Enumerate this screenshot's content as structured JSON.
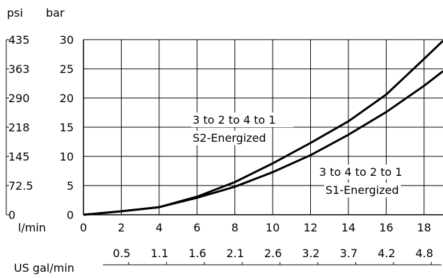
{
  "chart_data": {
    "type": "line",
    "y_units": [
      "psi",
      "bar"
    ],
    "x_unit": "l/min",
    "x2_unit": "US gal/min",
    "x_ticks": [
      0,
      2,
      4,
      6,
      8,
      10,
      12,
      14,
      16,
      18
    ],
    "x_range": [
      0,
      19
    ],
    "y_ticks_bar": [
      0,
      5,
      10,
      15,
      20,
      25,
      30
    ],
    "y_range": [
      0,
      30
    ],
    "y_ticks_psi": [
      "0",
      "72.5",
      "145",
      "218",
      "290",
      "363",
      "435"
    ],
    "x2_ticks": [
      "0.5",
      "1.1",
      "1.6",
      "2.1",
      "2.6",
      "3.2",
      "3.7",
      "4.2",
      "4.8"
    ],
    "grid": true,
    "series": [
      {
        "labels": [
          "3 to 2 to 4 to 1",
          "S2-Energized"
        ],
        "points": [
          [
            0,
            0
          ],
          [
            2,
            0.6
          ],
          [
            4,
            1.3
          ],
          [
            6,
            3.1
          ],
          [
            8,
            5.6
          ],
          [
            10,
            8.8
          ],
          [
            12,
            12.3
          ],
          [
            14,
            16.0
          ],
          [
            16,
            20.6
          ],
          [
            18,
            26.7
          ],
          [
            19,
            29.8
          ]
        ]
      },
      {
        "labels": [
          "3 to 4 to 2 to 1",
          "S1-Energized"
        ],
        "points": [
          [
            0,
            0
          ],
          [
            2,
            0.6
          ],
          [
            4,
            1.3
          ],
          [
            6,
            2.9
          ],
          [
            8,
            4.8
          ],
          [
            10,
            7.3
          ],
          [
            12,
            10.2
          ],
          [
            14,
            13.7
          ],
          [
            16,
            17.6
          ],
          [
            18,
            22.1
          ],
          [
            19,
            24.6
          ]
        ]
      }
    ]
  }
}
